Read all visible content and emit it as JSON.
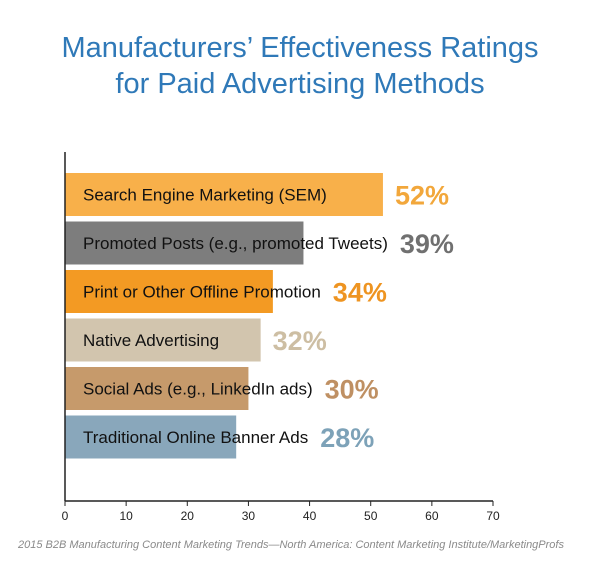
{
  "title_line1": "Manufacturers’ Effectiveness Ratings",
  "title_line2": "for Paid Advertising Methods",
  "source": "2015 B2B Manufacturing Content Marketing Trends—North America: Content Marketing Institute/MarketingProfs",
  "chart_data": {
    "type": "bar",
    "orientation": "horizontal",
    "title": "Manufacturers’ Effectiveness Ratings for Paid Advertising Methods",
    "categories": [
      "Search Engine Marketing (SEM)",
      "Promoted Posts (e.g., promoted Tweets)",
      "Print or Other Offline Promotion",
      "Native Advertising",
      "Social Ads (e.g., LinkedIn ads)",
      "Traditional Online Banner Ads"
    ],
    "values": [
      52,
      39,
      34,
      32,
      30,
      28
    ],
    "value_labels": [
      "52%",
      "39%",
      "34%",
      "32%",
      "30%",
      "28%"
    ],
    "bar_colors": [
      "#f8b04a",
      "#7d7d7d",
      "#f39a23",
      "#d2c5ae",
      "#c69a6b",
      "#89a7bb"
    ],
    "label_colors": [
      "#f2a73b",
      "#707070",
      "#ee9421",
      "#cdbea3",
      "#bf9063",
      "#7da2b8"
    ],
    "xlim": [
      0,
      70
    ],
    "xticks": [
      0,
      10,
      20,
      30,
      40,
      50,
      60,
      70
    ],
    "grid": false,
    "legend": "none"
  }
}
